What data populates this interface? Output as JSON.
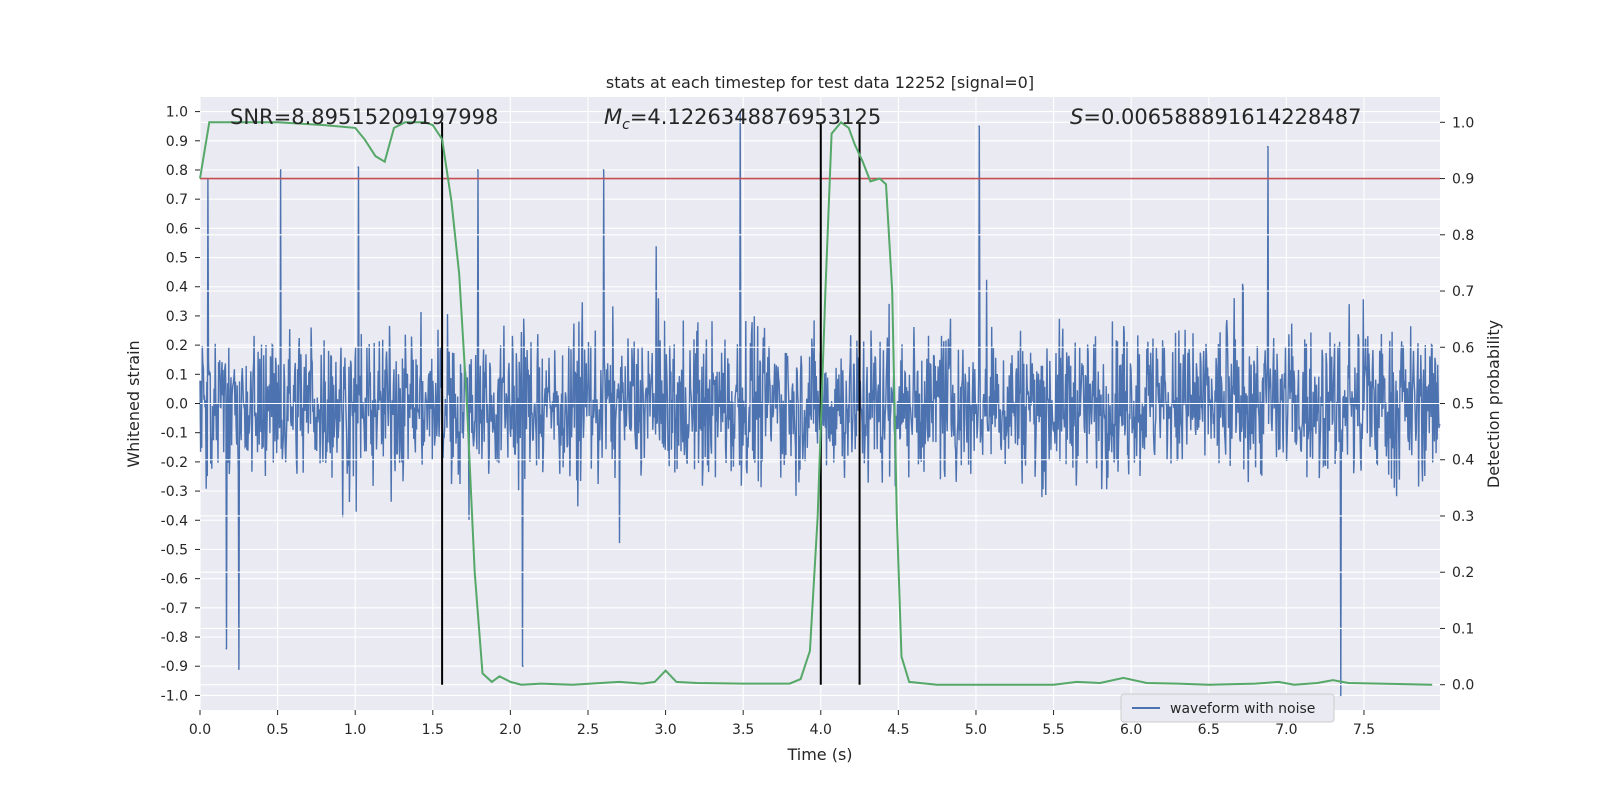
{
  "chart_data": {
    "type": "line",
    "title": "stats at each timestep for test data 12252 [signal=0]",
    "xlabel": "Time (s)",
    "ylabel_left": "Whitened strain",
    "ylabel_right": "Detection probability",
    "xlim": [
      0.0,
      7.99
    ],
    "ylim_left": [
      -1.05,
      1.05
    ],
    "ylim_right": [
      -0.045,
      1.045
    ],
    "x_ticks": [
      "0.0",
      "0.5",
      "1.0",
      "1.5",
      "2.0",
      "2.5",
      "3.0",
      "3.5",
      "4.0",
      "4.5",
      "5.0",
      "5.5",
      "6.0",
      "6.5",
      "7.0",
      "7.5"
    ],
    "y_left_ticks": [
      "-1.0",
      "-0.9",
      "-0.8",
      "-0.7",
      "-0.6",
      "-0.5",
      "-0.4",
      "-0.3",
      "-0.2",
      "-0.1",
      "0.0",
      "0.1",
      "0.2",
      "0.3",
      "0.4",
      "0.5",
      "0.6",
      "0.7",
      "0.8",
      "0.9",
      "1.0"
    ],
    "y_right_ticks": [
      "0.0",
      "0.1",
      "0.2",
      "0.3",
      "0.4",
      "0.5",
      "0.6",
      "0.7",
      "0.8",
      "0.9",
      "1.0"
    ],
    "grid": true,
    "legend": {
      "placement": "lower-right",
      "entries": [
        "waveform with noise"
      ]
    },
    "annotations": {
      "snr": "SNR=8.89515209197998",
      "mc_symbol": "M",
      "mc_sub": "c",
      "mc_value": "=4.1226348876953125",
      "s_symbol": "S",
      "s_value": "=0.006588891614228487"
    },
    "threshold": {
      "axis": "right",
      "value": 0.9
    },
    "vertical_lines": [
      1.56,
      4.0,
      4.25
    ],
    "waveform": {
      "name": "waveform with noise",
      "axis": "left",
      "noise_amplitude_typical": 0.35,
      "peaks": [
        {
          "x": 0.05,
          "y": 0.77
        },
        {
          "x": 0.17,
          "y": -0.84
        },
        {
          "x": 0.25,
          "y": -0.91
        },
        {
          "x": 0.52,
          "y": 0.8
        },
        {
          "x": 1.02,
          "y": 0.81
        },
        {
          "x": 1.79,
          "y": 0.8
        },
        {
          "x": 2.08,
          "y": -0.9
        },
        {
          "x": 2.6,
          "y": 0.8
        },
        {
          "x": 3.48,
          "y": 1.0
        },
        {
          "x": 5.02,
          "y": 0.95
        },
        {
          "x": 6.88,
          "y": 0.88
        },
        {
          "x": 7.35,
          "y": -1.0
        }
      ]
    },
    "detection_probability": {
      "axis": "right",
      "color": "#55a868",
      "points": [
        [
          0.0,
          0.9
        ],
        [
          0.06,
          1.0
        ],
        [
          0.2,
          1.0
        ],
        [
          0.5,
          1.0
        ],
        [
          0.8,
          0.995
        ],
        [
          1.0,
          0.99
        ],
        [
          1.06,
          0.97
        ],
        [
          1.13,
          0.94
        ],
        [
          1.19,
          0.93
        ],
        [
          1.25,
          0.99
        ],
        [
          1.32,
          1.0
        ],
        [
          1.45,
          1.0
        ],
        [
          1.5,
          0.995
        ],
        [
          1.56,
          0.97
        ],
        [
          1.62,
          0.86
        ],
        [
          1.67,
          0.73
        ],
        [
          1.72,
          0.5
        ],
        [
          1.77,
          0.2
        ],
        [
          1.82,
          0.02
        ],
        [
          1.88,
          0.005
        ],
        [
          1.93,
          0.015
        ],
        [
          2.0,
          0.005
        ],
        [
          2.07,
          0.0
        ],
        [
          2.2,
          0.002
        ],
        [
          2.4,
          0.0
        ],
        [
          2.7,
          0.005
        ],
        [
          2.85,
          0.002
        ],
        [
          2.93,
          0.005
        ],
        [
          3.0,
          0.025
        ],
        [
          3.07,
          0.005
        ],
        [
          3.2,
          0.003
        ],
        [
          3.5,
          0.002
        ],
        [
          3.8,
          0.002
        ],
        [
          3.87,
          0.01
        ],
        [
          3.93,
          0.06
        ],
        [
          3.98,
          0.3
        ],
        [
          4.03,
          0.7
        ],
        [
          4.07,
          0.98
        ],
        [
          4.13,
          1.0
        ],
        [
          4.18,
          0.99
        ],
        [
          4.22,
          0.96
        ],
        [
          4.27,
          0.93
        ],
        [
          4.32,
          0.895
        ],
        [
          4.38,
          0.9
        ],
        [
          4.42,
          0.89
        ],
        [
          4.46,
          0.7
        ],
        [
          4.49,
          0.3
        ],
        [
          4.52,
          0.05
        ],
        [
          4.57,
          0.005
        ],
        [
          4.75,
          0.0
        ],
        [
          5.0,
          0.0
        ],
        [
          5.5,
          0.0
        ],
        [
          5.65,
          0.005
        ],
        [
          5.8,
          0.003
        ],
        [
          5.95,
          0.012
        ],
        [
          6.1,
          0.003
        ],
        [
          6.3,
          0.002
        ],
        [
          6.5,
          0.0
        ],
        [
          6.8,
          0.002
        ],
        [
          6.95,
          0.005
        ],
        [
          7.05,
          0.0
        ],
        [
          7.2,
          0.003
        ],
        [
          7.3,
          0.008
        ],
        [
          7.4,
          0.003
        ],
        [
          7.6,
          0.002
        ],
        [
          7.94,
          0.0
        ]
      ]
    },
    "colors": {
      "background": "#eaeaf2",
      "grid": "#ffffff",
      "waveform": "#4c72b0",
      "probability": "#55a868",
      "threshold": "#c44e52",
      "vlines": "#000000"
    }
  }
}
